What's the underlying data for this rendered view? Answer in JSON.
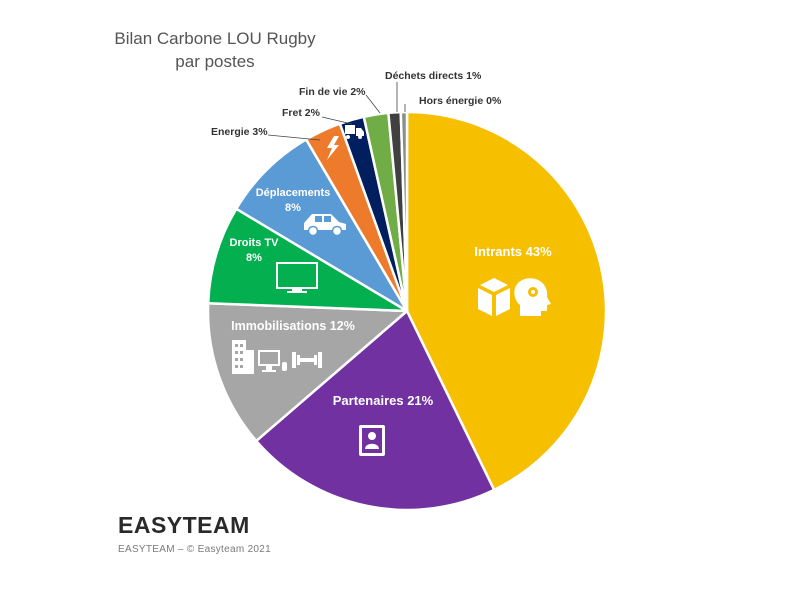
{
  "chart_data": {
    "type": "pie",
    "title": "Bilan Carbone LOU Rugby",
    "subtitle": "par postes",
    "slices": [
      {
        "label": "Intrants 43%",
        "value": 43,
        "color": "#F6BF00"
      },
      {
        "label": "Partenaires 21%",
        "value": 21,
        "color": "#7131A1"
      },
      {
        "label": "Immobilisations 12%",
        "value": 12,
        "color": "#A6A6A6"
      },
      {
        "label": "Droits TV 8%",
        "value": 8,
        "color": "#03AF4F"
      },
      {
        "label": "Déplacements 8%",
        "value": 8,
        "color": "#5B9BD5"
      },
      {
        "label": "Energie 3%",
        "value": 3,
        "color": "#EE7B2C"
      },
      {
        "label": "Fret 2%",
        "value": 2,
        "color": "#011F5F"
      },
      {
        "label": "Fin de vie 2%",
        "value": 2,
        "color": "#70AD46"
      },
      {
        "label": "Déchets directs 1%",
        "value": 1,
        "color": "#404040"
      },
      {
        "label": "Hors énergie 0%",
        "value": 0.5,
        "color": "#8C8C8C"
      }
    ]
  },
  "labels": {
    "intrants": "Intrants 43%",
    "partenaires": "Partenaires 21%",
    "immobilisations": "Immobilisations 12%",
    "droits_line1": "Droits TV",
    "droits_line2": "8%",
    "deplacements_line1": "Déplacements",
    "deplacements_line2": "8%",
    "energie": "Energie 3%",
    "fret": "Fret 2%",
    "fin_de_vie": "Fin de vie 2%",
    "dechets": "Déchets directs 1%",
    "hors_energie": "Hors énergie 0%"
  },
  "icons": {
    "intrants": [
      "box-icon",
      "head-gear-icon"
    ],
    "partenaires": "contact-book-icon",
    "immobilisations": [
      "building-icon",
      "computer-icon",
      "dumbbell-icon"
    ],
    "droits_tv": "tv-icon",
    "deplacements": "car-icon",
    "energie": "lightning-icon",
    "fret": "truck-icon"
  },
  "brand": {
    "logo_text": "EASYTEAM",
    "credit": "EASYTEAM – © Easyteam 2021"
  }
}
